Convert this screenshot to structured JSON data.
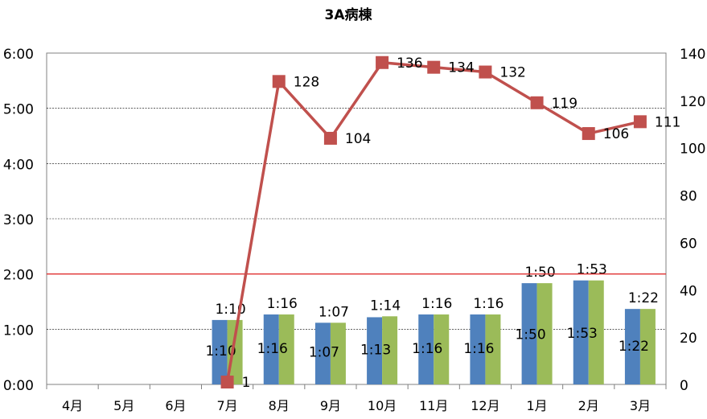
{
  "chart_data": {
    "type": "bar+line",
    "title": "3A病棟",
    "categories": [
      "4月",
      "5月",
      "6月",
      "7月",
      "8月",
      "9月",
      "10月",
      "11月",
      "12月",
      "1月",
      "2月",
      "3月"
    ],
    "y_left": {
      "ylim_minutes": [
        0,
        360
      ],
      "ticks": [
        "0:00",
        "1:00",
        "2:00",
        "3:00",
        "4:00",
        "5:00",
        "6:00"
      ],
      "grid": true
    },
    "y_right": {
      "ylim": [
        0,
        140
      ],
      "ticks": [
        "0",
        "20",
        "40",
        "60",
        "80",
        "100",
        "120",
        "140"
      ]
    },
    "reference_line": {
      "value_minutes": 120,
      "color": "#e03030"
    },
    "series": [
      {
        "kind": "bar",
        "axis": "left",
        "color": "#4f81bd",
        "values_minutes": [
          null,
          null,
          null,
          70,
          76,
          67,
          73,
          76,
          76,
          110,
          113,
          82
        ],
        "labels": [
          "",
          "",
          "",
          "1:10",
          "1:16",
          "1:07",
          "1:13",
          "1:16",
          "1:16",
          "1:50",
          "1:53",
          "1:22"
        ]
      },
      {
        "kind": "bar",
        "axis": "left",
        "color": "#9bbb59",
        "values_minutes": [
          null,
          null,
          null,
          70,
          76,
          67,
          74,
          76,
          76,
          110,
          113,
          82
        ],
        "labels": [
          "",
          "",
          "",
          "1:10",
          "1:16",
          "1:07",
          "1:14",
          "1:16",
          "1:16",
          "1:50",
          "1:53",
          "1:22"
        ]
      },
      {
        "kind": "line",
        "axis": "right",
        "color": "#c0504d",
        "values": [
          null,
          null,
          null,
          1,
          128,
          104,
          136,
          134,
          132,
          119,
          106,
          111
        ],
        "labels": [
          "",
          "",
          "",
          "1",
          "128",
          "104",
          "136",
          "134",
          "132",
          "119",
          "106",
          "111"
        ]
      }
    ]
  }
}
